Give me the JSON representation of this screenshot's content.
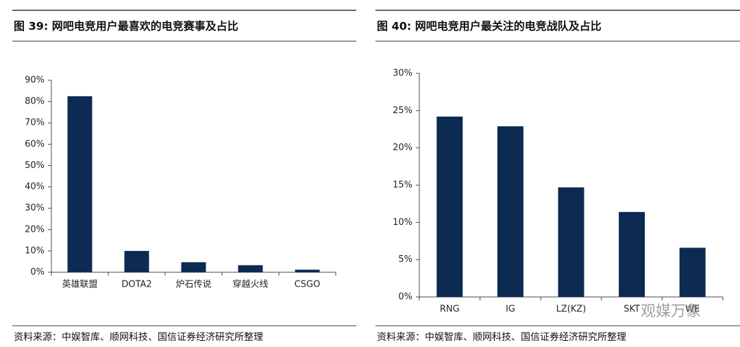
{
  "chart_data": [
    {
      "type": "bar",
      "title": "图 39: 网吧电竞用户最喜欢的电竞赛事及占比",
      "categories": [
        "英雄联盟",
        "DOTA2",
        "炉石传说",
        "穿越火线",
        "CSGO"
      ],
      "values": [
        82.5,
        10,
        4.7,
        3.3,
        1.2
      ],
      "color": "#0c2a52",
      "ylim": [
        0,
        90
      ],
      "yticks": [
        {
          "value": 0,
          "label": "0%"
        },
        {
          "value": 10,
          "label": "10%"
        },
        {
          "value": 20,
          "label": "20%"
        },
        {
          "value": 30,
          "label": "30%"
        },
        {
          "value": 40,
          "label": "40%"
        },
        {
          "value": 50,
          "label": "50%"
        },
        {
          "value": 60,
          "label": "60%"
        },
        {
          "value": 70,
          "label": "70%"
        },
        {
          "value": 80,
          "label": "80%"
        },
        {
          "value": 90,
          "label": "90%"
        }
      ],
      "source": "资料来源：中娱智库、顺网科技、国信证券经济研究所整理"
    },
    {
      "type": "bar",
      "title": "图 40: 网吧电竞用户最关注的电竞战队及占比",
      "categories": [
        "RNG",
        "IG",
        "LZ(KZ)",
        "SKT",
        "WE"
      ],
      "values": [
        24.2,
        22.9,
        14.7,
        11.4,
        6.6
      ],
      "color": "#0c2a52",
      "ylim": [
        0,
        30
      ],
      "yticks": [
        {
          "value": 0,
          "label": "0%"
        },
        {
          "value": 5,
          "label": "5%"
        },
        {
          "value": 10,
          "label": "10%"
        },
        {
          "value": 15,
          "label": "15%"
        },
        {
          "value": 20,
          "label": "20%"
        },
        {
          "value": 25,
          "label": "25%"
        },
        {
          "value": 30,
          "label": "30%"
        }
      ],
      "source": "资料来源：中娱智库、顺网科技、国信证券经济研究所整理"
    }
  ],
  "watermark": "观媒万象"
}
